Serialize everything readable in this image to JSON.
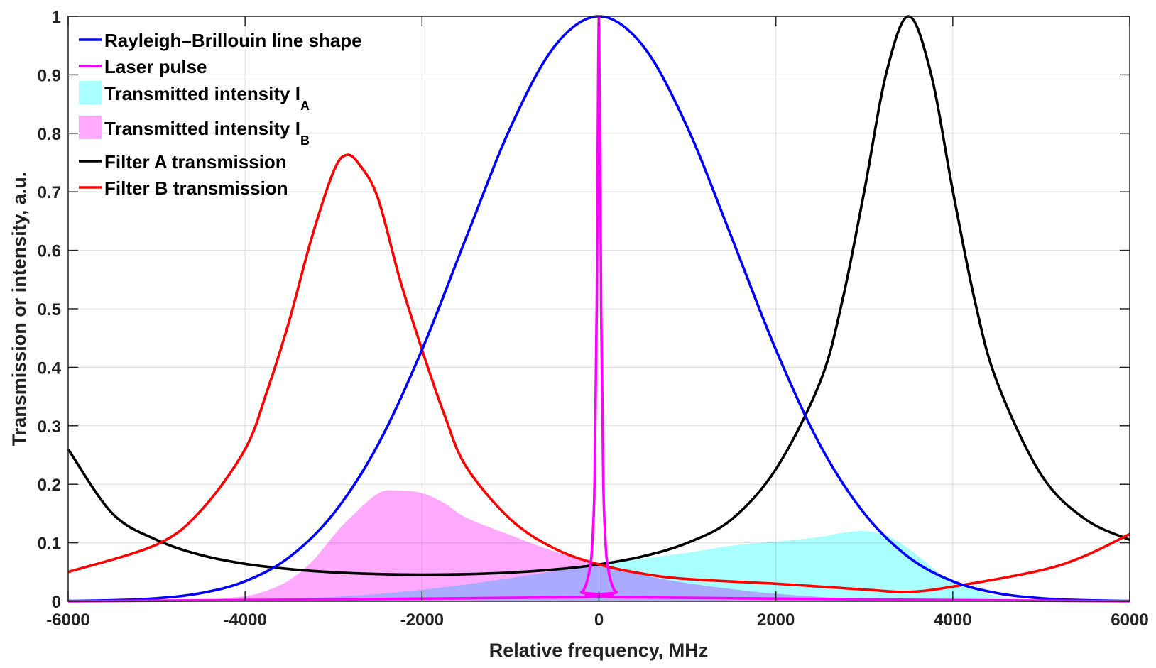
{
  "chart_data": {
    "type": "line",
    "title": "",
    "xlabel": "Relative frequency, MHz",
    "ylabel": "Transmission or intensity, a.u.",
    "xlim": [
      -6000,
      6000
    ],
    "ylim": [
      0,
      1
    ],
    "grid": true,
    "legend_position": "top-left",
    "xticks": [
      -6000,
      -4000,
      -2000,
      0,
      2000,
      4000,
      6000
    ],
    "xtick_labels": [
      "-6000",
      "-4000",
      "-2000",
      "0",
      "2000",
      "4000",
      "6000"
    ],
    "yticks": [
      0,
      0.1,
      0.2,
      0.3,
      0.4,
      0.5,
      0.6,
      0.7,
      0.8,
      0.9,
      1
    ],
    "ytick_labels": [
      "0",
      "0.1",
      "0.2",
      "0.3",
      "0.4",
      "0.5",
      "0.6",
      "0.7",
      "0.8",
      "0.9",
      "1"
    ],
    "series": [
      {
        "name": "Transmitted intensity I_A",
        "label": "Transmitted intensity I",
        "subscript": "A",
        "kind": "area",
        "color": "#aaffff",
        "x": [
          -6000,
          -5000,
          -4000,
          -3500,
          -3000,
          -2500,
          -2000,
          -1500,
          -1000,
          -500,
          0,
          500,
          1000,
          1500,
          2000,
          2500,
          2750,
          3000,
          3250,
          3500,
          3750,
          4000,
          4500,
          5000,
          6000
        ],
        "y": [
          0,
          0.0005,
          0.0022,
          0.0041,
          0.0074,
          0.0124,
          0.0196,
          0.0289,
          0.0399,
          0.0516,
          0.063,
          0.0731,
          0.0829,
          0.095,
          0.102,
          0.11,
          0.117,
          0.12,
          0.113,
          0.09,
          0.06,
          0.033,
          0.009,
          0.002,
          0
        ]
      },
      {
        "name": "Transmitted intensity I_B",
        "label": "Transmitted intensity I",
        "subscript": "B",
        "kind": "area",
        "color": "#ffaaff",
        "x": [
          -6000,
          -5000,
          -4500,
          -4000,
          -3750,
          -3500,
          -3250,
          -3000,
          -2850,
          -2500,
          -2250,
          -2000,
          -1750,
          -1500,
          -1000,
          -500,
          0,
          500,
          1000,
          1500,
          2000,
          3000,
          4000,
          6000
        ],
        "y": [
          0,
          0.0005,
          0.0022,
          0.0089,
          0.0185,
          0.0362,
          0.067,
          0.112,
          0.137,
          0.184,
          0.189,
          0.185,
          0.168,
          0.143,
          0.113,
          0.085,
          0.063,
          0.0446,
          0.031,
          0.021,
          0.0129,
          0.003,
          0.0009,
          0
        ]
      },
      {
        "name": "Filter A transmission",
        "label": "Filter A transmission",
        "kind": "line",
        "color": "#000000",
        "x": [
          -6000,
          -5500,
          -5000,
          -4500,
          -4000,
          -3500,
          -3000,
          -2500,
          -2000,
          -1500,
          -1000,
          -500,
          0,
          500,
          1000,
          1500,
          2000,
          2500,
          2750,
          3000,
          3250,
          3500,
          3750,
          4000,
          4250,
          4500,
          5000,
          5500,
          6000
        ],
        "y": [
          0.26,
          0.15,
          0.105,
          0.079,
          0.064,
          0.055,
          0.0495,
          0.0465,
          0.0455,
          0.0464,
          0.0492,
          0.0544,
          0.063,
          0.077,
          0.0999,
          0.14,
          0.226,
          0.375,
          0.513,
          0.702,
          0.904,
          1,
          0.904,
          0.702,
          0.513,
          0.375,
          0.216,
          0.14,
          0.105
        ]
      },
      {
        "name": "Filter B transmission",
        "label": "Filter B transmission",
        "kind": "line",
        "color": "#ff0000",
        "x": [
          -6000,
          -5000,
          -4500,
          -4000,
          -3750,
          -3500,
          -3250,
          -3000,
          -2850,
          -2700,
          -2500,
          -2250,
          -2000,
          -1750,
          -1500,
          -1000,
          -500,
          0,
          500,
          1000,
          2000,
          3000,
          3500,
          4000,
          5000,
          5500,
          6000
        ],
        "y": [
          0.05,
          0.097,
          0.155,
          0.26,
          0.36,
          0.48,
          0.62,
          0.735,
          0.763,
          0.745,
          0.69,
          0.55,
          0.43,
          0.32,
          0.23,
          0.14,
          0.09,
          0.063,
          0.047,
          0.038,
          0.03,
          0.02,
          0.016,
          0.025,
          0.053,
          0.078,
          0.115
        ]
      },
      {
        "name": "Rayleigh-Brillouin line shape",
        "label": "Rayleigh–Brillouin line shape",
        "kind": "line",
        "color": "#0000ff",
        "x": [
          -6000,
          -5500,
          -5000,
          -4500,
          -4000,
          -3500,
          -3000,
          -2500,
          -2000,
          -1500,
          -1000,
          -500,
          0,
          500,
          1000,
          1500,
          2000,
          2500,
          3000,
          3500,
          4000,
          4500,
          5000,
          5500,
          6000
        ],
        "y": [
          0.0005,
          0.0017,
          0.0051,
          0.0139,
          0.0342,
          0.0755,
          0.15,
          0.267,
          0.43,
          0.622,
          0.81,
          0.949,
          1,
          0.949,
          0.81,
          0.622,
          0.43,
          0.267,
          0.15,
          0.0755,
          0.0342,
          0.0139,
          0.0051,
          0.0017,
          0.0005
        ]
      },
      {
        "name": "Laser pulse",
        "label": "Laser pulse",
        "kind": "line",
        "color": "#ff00ff",
        "x": [
          -6000,
          -300,
          -200,
          -150,
          -100,
          -75,
          -50,
          -25,
          0,
          25,
          50,
          75,
          100,
          150,
          200,
          300,
          6000
        ],
        "y": [
          0,
          0.0069,
          0.0154,
          0.027,
          0.0588,
          0.1,
          0.2,
          0.5,
          1,
          0.5,
          0.2,
          0.1,
          0.0588,
          0.027,
          0.0154,
          0.0069,
          0
        ]
      }
    ],
    "legend_order": [
      4,
      5,
      0,
      1,
      2,
      3
    ]
  }
}
